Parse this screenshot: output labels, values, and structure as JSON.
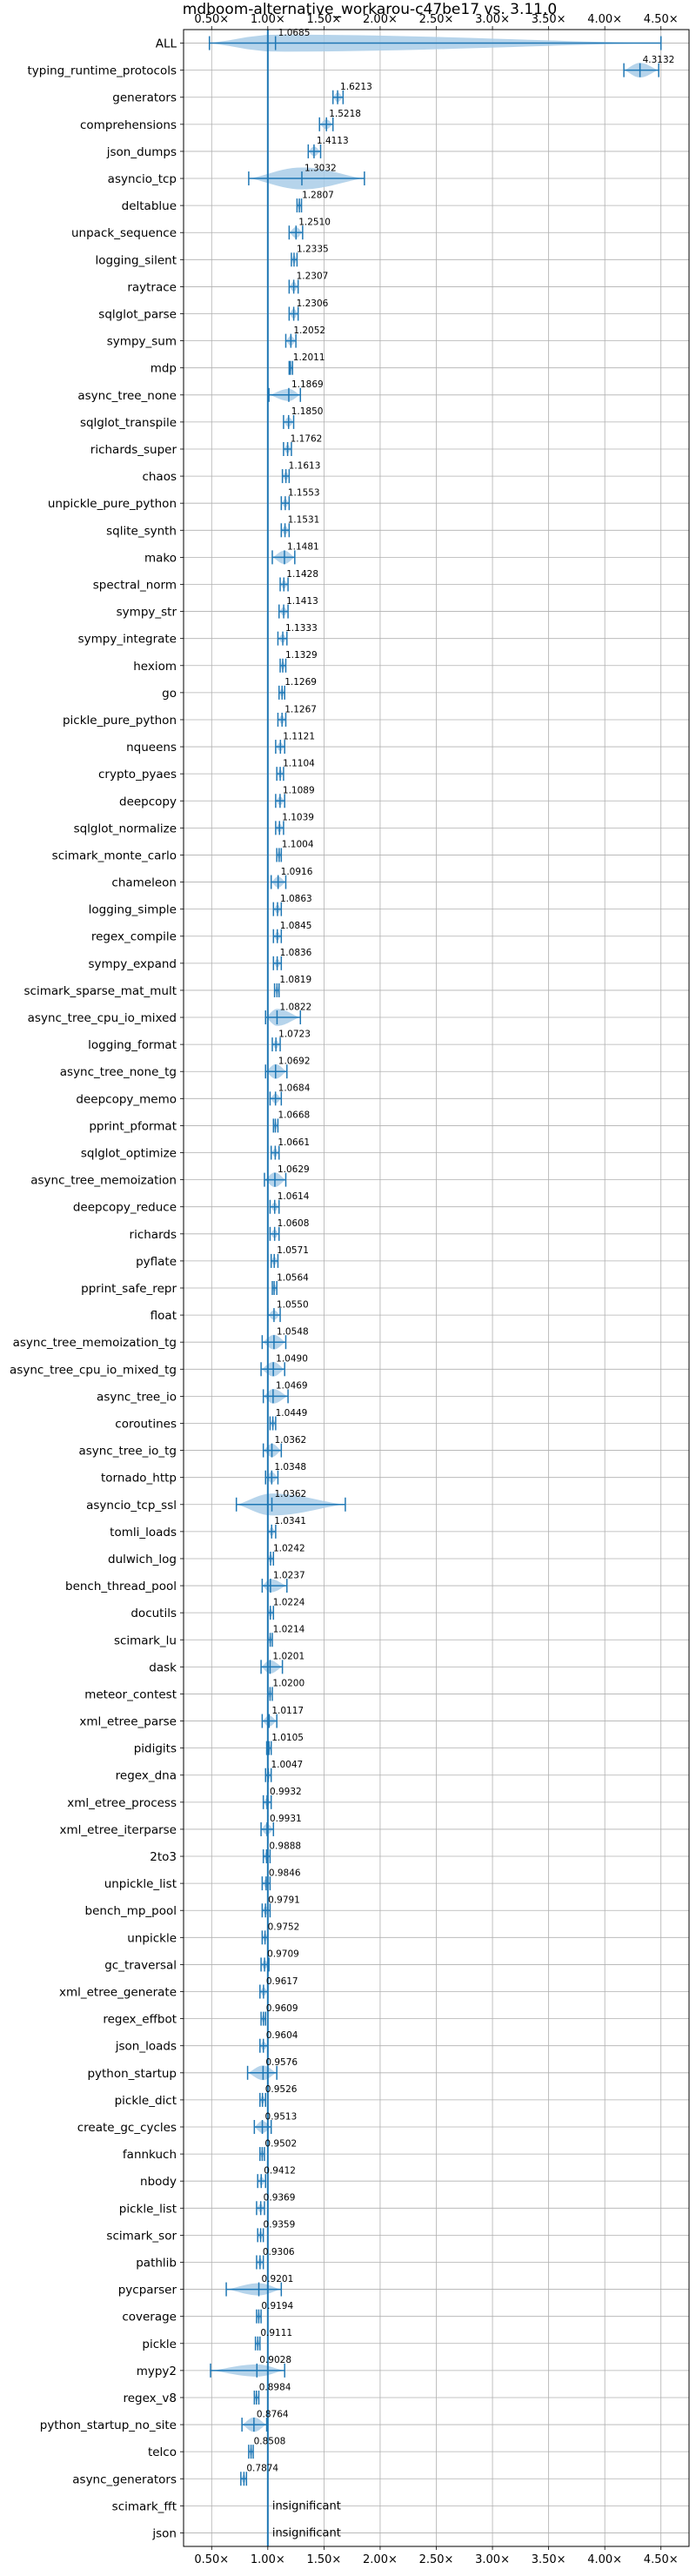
{
  "chart_data": {
    "type": "violin",
    "title": "mdboom-alternative_workarou-c47be17 vs. 3.11.0",
    "xlabel": "",
    "ylabel": "",
    "xlim": [
      0.25,
      4.75
    ],
    "xticks": [
      0.5,
      1.0,
      1.5,
      2.0,
      2.5,
      3.0,
      3.5,
      4.0,
      4.5
    ],
    "xtick_labels": [
      "0.50×",
      "1.00×",
      "1.50×",
      "2.00×",
      "2.50×",
      "3.00×",
      "3.50×",
      "4.00×",
      "4.50×"
    ],
    "reference_line": 1.0,
    "grid": true,
    "colors": {
      "violin": "#a9cce8",
      "line": "#1f77b4",
      "grid": "#b0b0b0",
      "reference": "#1f77b4"
    },
    "benchmarks": [
      {
        "name": "ALL",
        "value": 1.0685,
        "label": "1.0685",
        "min": 0.48,
        "max": 4.5,
        "width": 0.7
      },
      {
        "name": "typing_runtime_protocols",
        "value": 4.3132,
        "label": "4.3132",
        "min": 4.17,
        "max": 4.48,
        "width": 0.6
      },
      {
        "name": "generators",
        "value": 1.6213,
        "label": "1.6213",
        "min": 1.58,
        "max": 1.67,
        "width": 0.4
      },
      {
        "name": "comprehensions",
        "value": 1.5218,
        "label": "1.5218",
        "min": 1.46,
        "max": 1.58,
        "width": 0.4
      },
      {
        "name": "json_dumps",
        "value": 1.4113,
        "label": "1.4113",
        "min": 1.36,
        "max": 1.47,
        "width": 0.4
      },
      {
        "name": "asyncio_tcp",
        "value": 1.3032,
        "label": "1.3032",
        "min": 0.83,
        "max": 1.86,
        "width": 0.9
      },
      {
        "name": "deltablue",
        "value": 1.2807,
        "label": "1.2807",
        "min": 1.26,
        "max": 1.3,
        "width": 0.3
      },
      {
        "name": "unpack_sequence",
        "value": 1.251,
        "label": "1.2510",
        "min": 1.19,
        "max": 1.31,
        "width": 0.45
      },
      {
        "name": "logging_silent",
        "value": 1.2335,
        "label": "1.2335",
        "min": 1.21,
        "max": 1.26,
        "width": 0.3
      },
      {
        "name": "raytrace",
        "value": 1.2307,
        "label": "1.2307",
        "min": 1.19,
        "max": 1.27,
        "width": 0.4
      },
      {
        "name": "sqlglot_parse",
        "value": 1.2306,
        "label": "1.2306",
        "min": 1.19,
        "max": 1.27,
        "width": 0.4
      },
      {
        "name": "sympy_sum",
        "value": 1.2052,
        "label": "1.2052",
        "min": 1.16,
        "max": 1.25,
        "width": 0.4
      },
      {
        "name": "mdp",
        "value": 1.2011,
        "label": "1.2011",
        "min": 1.19,
        "max": 1.22,
        "width": 0.3
      },
      {
        "name": "async_tree_none",
        "value": 1.1869,
        "label": "1.1869",
        "min": 1.01,
        "max": 1.29,
        "width": 0.5
      },
      {
        "name": "sqlglot_transpile",
        "value": 1.185,
        "label": "1.1850",
        "min": 1.14,
        "max": 1.23,
        "width": 0.4
      },
      {
        "name": "richards_super",
        "value": 1.1762,
        "label": "1.1762",
        "min": 1.14,
        "max": 1.21,
        "width": 0.35
      },
      {
        "name": "chaos",
        "value": 1.1613,
        "label": "1.1613",
        "min": 1.13,
        "max": 1.19,
        "width": 0.35
      },
      {
        "name": "unpickle_pure_python",
        "value": 1.1553,
        "label": "1.1553",
        "min": 1.12,
        "max": 1.19,
        "width": 0.35
      },
      {
        "name": "sqlite_synth",
        "value": 1.1531,
        "label": "1.1531",
        "min": 1.12,
        "max": 1.19,
        "width": 0.35
      },
      {
        "name": "mako",
        "value": 1.1481,
        "label": "1.1481",
        "min": 1.04,
        "max": 1.24,
        "width": 0.55
      },
      {
        "name": "spectral_norm",
        "value": 1.1428,
        "label": "1.1428",
        "min": 1.11,
        "max": 1.18,
        "width": 0.35
      },
      {
        "name": "sympy_str",
        "value": 1.1413,
        "label": "1.1413",
        "min": 1.1,
        "max": 1.18,
        "width": 0.35
      },
      {
        "name": "sympy_integrate",
        "value": 1.1333,
        "label": "1.1333",
        "min": 1.09,
        "max": 1.17,
        "width": 0.35
      },
      {
        "name": "hexiom",
        "value": 1.1329,
        "label": "1.1329",
        "min": 1.11,
        "max": 1.16,
        "width": 0.3
      },
      {
        "name": "go",
        "value": 1.1269,
        "label": "1.1269",
        "min": 1.1,
        "max": 1.15,
        "width": 0.3
      },
      {
        "name": "pickle_pure_python",
        "value": 1.1267,
        "label": "1.1267",
        "min": 1.09,
        "max": 1.16,
        "width": 0.35
      },
      {
        "name": "nqueens",
        "value": 1.1121,
        "label": "1.1121",
        "min": 1.07,
        "max": 1.15,
        "width": 0.35
      },
      {
        "name": "crypto_pyaes",
        "value": 1.1104,
        "label": "1.1104",
        "min": 1.08,
        "max": 1.14,
        "width": 0.35
      },
      {
        "name": "deepcopy",
        "value": 1.1089,
        "label": "1.1089",
        "min": 1.07,
        "max": 1.15,
        "width": 0.35
      },
      {
        "name": "sqlglot_normalize",
        "value": 1.1039,
        "label": "1.1039",
        "min": 1.07,
        "max": 1.14,
        "width": 0.35
      },
      {
        "name": "scimark_monte_carlo",
        "value": 1.1004,
        "label": "1.1004",
        "min": 1.08,
        "max": 1.12,
        "width": 0.3
      },
      {
        "name": "chameleon",
        "value": 1.0916,
        "label": "1.0916",
        "min": 1.03,
        "max": 1.16,
        "width": 0.45
      },
      {
        "name": "logging_simple",
        "value": 1.0863,
        "label": "1.0863",
        "min": 1.05,
        "max": 1.12,
        "width": 0.35
      },
      {
        "name": "regex_compile",
        "value": 1.0845,
        "label": "1.0845",
        "min": 1.05,
        "max": 1.12,
        "width": 0.35
      },
      {
        "name": "sympy_expand",
        "value": 1.0836,
        "label": "1.0836",
        "min": 1.05,
        "max": 1.12,
        "width": 0.35
      },
      {
        "name": "scimark_sparse_mat_mult",
        "value": 1.0819,
        "label": "1.0819",
        "min": 1.06,
        "max": 1.1,
        "width": 0.3
      },
      {
        "name": "async_tree_cpu_io_mixed",
        "value": 1.0822,
        "label": "1.0822",
        "min": 0.98,
        "max": 1.29,
        "width": 0.7
      },
      {
        "name": "logging_format",
        "value": 1.0723,
        "label": "1.0723",
        "min": 1.04,
        "max": 1.11,
        "width": 0.35
      },
      {
        "name": "async_tree_none_tg",
        "value": 1.0692,
        "label": "1.0692",
        "min": 0.98,
        "max": 1.17,
        "width": 0.6
      },
      {
        "name": "deepcopy_memo",
        "value": 1.0684,
        "label": "1.0684",
        "min": 1.02,
        "max": 1.12,
        "width": 0.4
      },
      {
        "name": "pprint_pformat",
        "value": 1.0668,
        "label": "1.0668",
        "min": 1.05,
        "max": 1.09,
        "width": 0.3
      },
      {
        "name": "sqlglot_optimize",
        "value": 1.0661,
        "label": "1.0661",
        "min": 1.03,
        "max": 1.1,
        "width": 0.35
      },
      {
        "name": "async_tree_memoization",
        "value": 1.0629,
        "label": "1.0629",
        "min": 0.97,
        "max": 1.16,
        "width": 0.6
      },
      {
        "name": "deepcopy_reduce",
        "value": 1.0614,
        "label": "1.0614",
        "min": 1.02,
        "max": 1.1,
        "width": 0.35
      },
      {
        "name": "richards",
        "value": 1.0608,
        "label": "1.0608",
        "min": 1.02,
        "max": 1.1,
        "width": 0.35
      },
      {
        "name": "pyflate",
        "value": 1.0571,
        "label": "1.0571",
        "min": 1.03,
        "max": 1.09,
        "width": 0.3
      },
      {
        "name": "pprint_safe_repr",
        "value": 1.0564,
        "label": "1.0564",
        "min": 1.04,
        "max": 1.08,
        "width": 0.3
      },
      {
        "name": "float",
        "value": 1.055,
        "label": "1.0550",
        "min": 1.0,
        "max": 1.11,
        "width": 0.4
      },
      {
        "name": "async_tree_memoization_tg",
        "value": 1.0548,
        "label": "1.0548",
        "min": 0.95,
        "max": 1.16,
        "width": 0.6
      },
      {
        "name": "async_tree_cpu_io_mixed_tg",
        "value": 1.049,
        "label": "1.0490",
        "min": 0.94,
        "max": 1.15,
        "width": 0.6
      },
      {
        "name": "async_tree_io",
        "value": 1.0469,
        "label": "1.0469",
        "min": 0.96,
        "max": 1.18,
        "width": 0.6
      },
      {
        "name": "coroutines",
        "value": 1.0449,
        "label": "1.0449",
        "min": 1.02,
        "max": 1.07,
        "width": 0.3
      },
      {
        "name": "async_tree_io_tg",
        "value": 1.0362,
        "label": "1.0362",
        "min": 0.96,
        "max": 1.12,
        "width": 0.55
      },
      {
        "name": "tornado_http",
        "value": 1.0348,
        "label": "1.0348",
        "min": 0.98,
        "max": 1.09,
        "width": 0.45
      },
      {
        "name": "asyncio_tcp_ssl",
        "value": 1.0362,
        "label": "1.0362",
        "min": 0.72,
        "max": 1.69,
        "width": 0.9
      },
      {
        "name": "tomli_loads",
        "value": 1.0341,
        "label": "1.0341",
        "min": 1.0,
        "max": 1.07,
        "width": 0.35
      },
      {
        "name": "dulwich_log",
        "value": 1.0242,
        "label": "1.0242",
        "min": 1.0,
        "max": 1.05,
        "width": 0.3
      },
      {
        "name": "bench_thread_pool",
        "value": 1.0237,
        "label": "1.0237",
        "min": 0.95,
        "max": 1.17,
        "width": 0.55
      },
      {
        "name": "docutils",
        "value": 1.0224,
        "label": "1.0224",
        "min": 1.0,
        "max": 1.05,
        "width": 0.3
      },
      {
        "name": "scimark_lu",
        "value": 1.0214,
        "label": "1.0214",
        "min": 1.0,
        "max": 1.04,
        "width": 0.3
      },
      {
        "name": "dask",
        "value": 1.0201,
        "label": "1.0201",
        "min": 0.94,
        "max": 1.13,
        "width": 0.55
      },
      {
        "name": "meteor_contest",
        "value": 1.02,
        "label": "1.0200",
        "min": 1.0,
        "max": 1.04,
        "width": 0.3
      },
      {
        "name": "xml_etree_parse",
        "value": 1.0117,
        "label": "1.0117",
        "min": 0.95,
        "max": 1.08,
        "width": 0.45
      },
      {
        "name": "pidigits",
        "value": 1.0105,
        "label": "1.0105",
        "min": 0.99,
        "max": 1.03,
        "width": 0.3
      },
      {
        "name": "regex_dna",
        "value": 1.0047,
        "label": "1.0047",
        "min": 0.98,
        "max": 1.03,
        "width": 0.3
      },
      {
        "name": "xml_etree_process",
        "value": 0.9932,
        "label": "0.9932",
        "min": 0.96,
        "max": 1.03,
        "width": 0.35
      },
      {
        "name": "xml_etree_iterparse",
        "value": 0.9931,
        "label": "0.9931",
        "min": 0.94,
        "max": 1.05,
        "width": 0.45
      },
      {
        "name": "2to3",
        "value": 0.9888,
        "label": "0.9888",
        "min": 0.96,
        "max": 1.02,
        "width": 0.35
      },
      {
        "name": "unpickle_list",
        "value": 0.9846,
        "label": "0.9846",
        "min": 0.95,
        "max": 1.02,
        "width": 0.35
      },
      {
        "name": "bench_mp_pool",
        "value": 0.9791,
        "label": "0.9791",
        "min": 0.95,
        "max": 1.02,
        "width": 0.35
      },
      {
        "name": "unpickle",
        "value": 0.9752,
        "label": "0.9752",
        "min": 0.95,
        "max": 1.0,
        "width": 0.3
      },
      {
        "name": "gc_traversal",
        "value": 0.9709,
        "label": "0.9709",
        "min": 0.94,
        "max": 1.01,
        "width": 0.35
      },
      {
        "name": "xml_etree_generate",
        "value": 0.9617,
        "label": "0.9617",
        "min": 0.93,
        "max": 1.0,
        "width": 0.35
      },
      {
        "name": "regex_effbot",
        "value": 0.9609,
        "label": "0.9609",
        "min": 0.94,
        "max": 0.98,
        "width": 0.3
      },
      {
        "name": "json_loads",
        "value": 0.9604,
        "label": "0.9604",
        "min": 0.93,
        "max": 1.0,
        "width": 0.35
      },
      {
        "name": "python_startup",
        "value": 0.9576,
        "label": "0.9576",
        "min": 0.82,
        "max": 1.08,
        "width": 0.6
      },
      {
        "name": "pickle_dict",
        "value": 0.9526,
        "label": "0.9526",
        "min": 0.93,
        "max": 0.98,
        "width": 0.3
      },
      {
        "name": "create_gc_cycles",
        "value": 0.9513,
        "label": "0.9513",
        "min": 0.88,
        "max": 1.03,
        "width": 0.5
      },
      {
        "name": "fannkuch",
        "value": 0.9502,
        "label": "0.9502",
        "min": 0.93,
        "max": 0.97,
        "width": 0.3
      },
      {
        "name": "nbody",
        "value": 0.9412,
        "label": "0.9412",
        "min": 0.91,
        "max": 0.98,
        "width": 0.35
      },
      {
        "name": "pickle_list",
        "value": 0.9369,
        "label": "0.9369",
        "min": 0.9,
        "max": 0.97,
        "width": 0.35
      },
      {
        "name": "scimark_sor",
        "value": 0.9359,
        "label": "0.9359",
        "min": 0.91,
        "max": 0.96,
        "width": 0.3
      },
      {
        "name": "pathlib",
        "value": 0.9306,
        "label": "0.9306",
        "min": 0.9,
        "max": 0.96,
        "width": 0.3
      },
      {
        "name": "pycparser",
        "value": 0.9201,
        "label": "0.9201",
        "min": 0.63,
        "max": 1.12,
        "width": 0.5
      },
      {
        "name": "coverage",
        "value": 0.9194,
        "label": "0.9194",
        "min": 0.9,
        "max": 0.94,
        "width": 0.3
      },
      {
        "name": "pickle",
        "value": 0.9111,
        "label": "0.9111",
        "min": 0.89,
        "max": 0.93,
        "width": 0.3
      },
      {
        "name": "mypy2",
        "value": 0.9028,
        "label": "0.9028",
        "min": 0.49,
        "max": 1.15,
        "width": 0.5
      },
      {
        "name": "regex_v8",
        "value": 0.8984,
        "label": "0.8984",
        "min": 0.88,
        "max": 0.92,
        "width": 0.3
      },
      {
        "name": "python_startup_no_site",
        "value": 0.8764,
        "label": "0.8764",
        "min": 0.77,
        "max": 0.99,
        "width": 0.6
      },
      {
        "name": "telco",
        "value": 0.8508,
        "label": "0.8508",
        "min": 0.83,
        "max": 0.87,
        "width": 0.3
      },
      {
        "name": "async_generators",
        "value": 0.7874,
        "label": "0.7874",
        "min": 0.76,
        "max": 0.81,
        "width": 0.35
      },
      {
        "name": "scimark_fft",
        "value": null,
        "label": "insignificant",
        "min": null,
        "max": null,
        "width": 0
      },
      {
        "name": "json",
        "value": null,
        "label": "insignificant",
        "min": null,
        "max": null,
        "width": 0
      }
    ]
  }
}
